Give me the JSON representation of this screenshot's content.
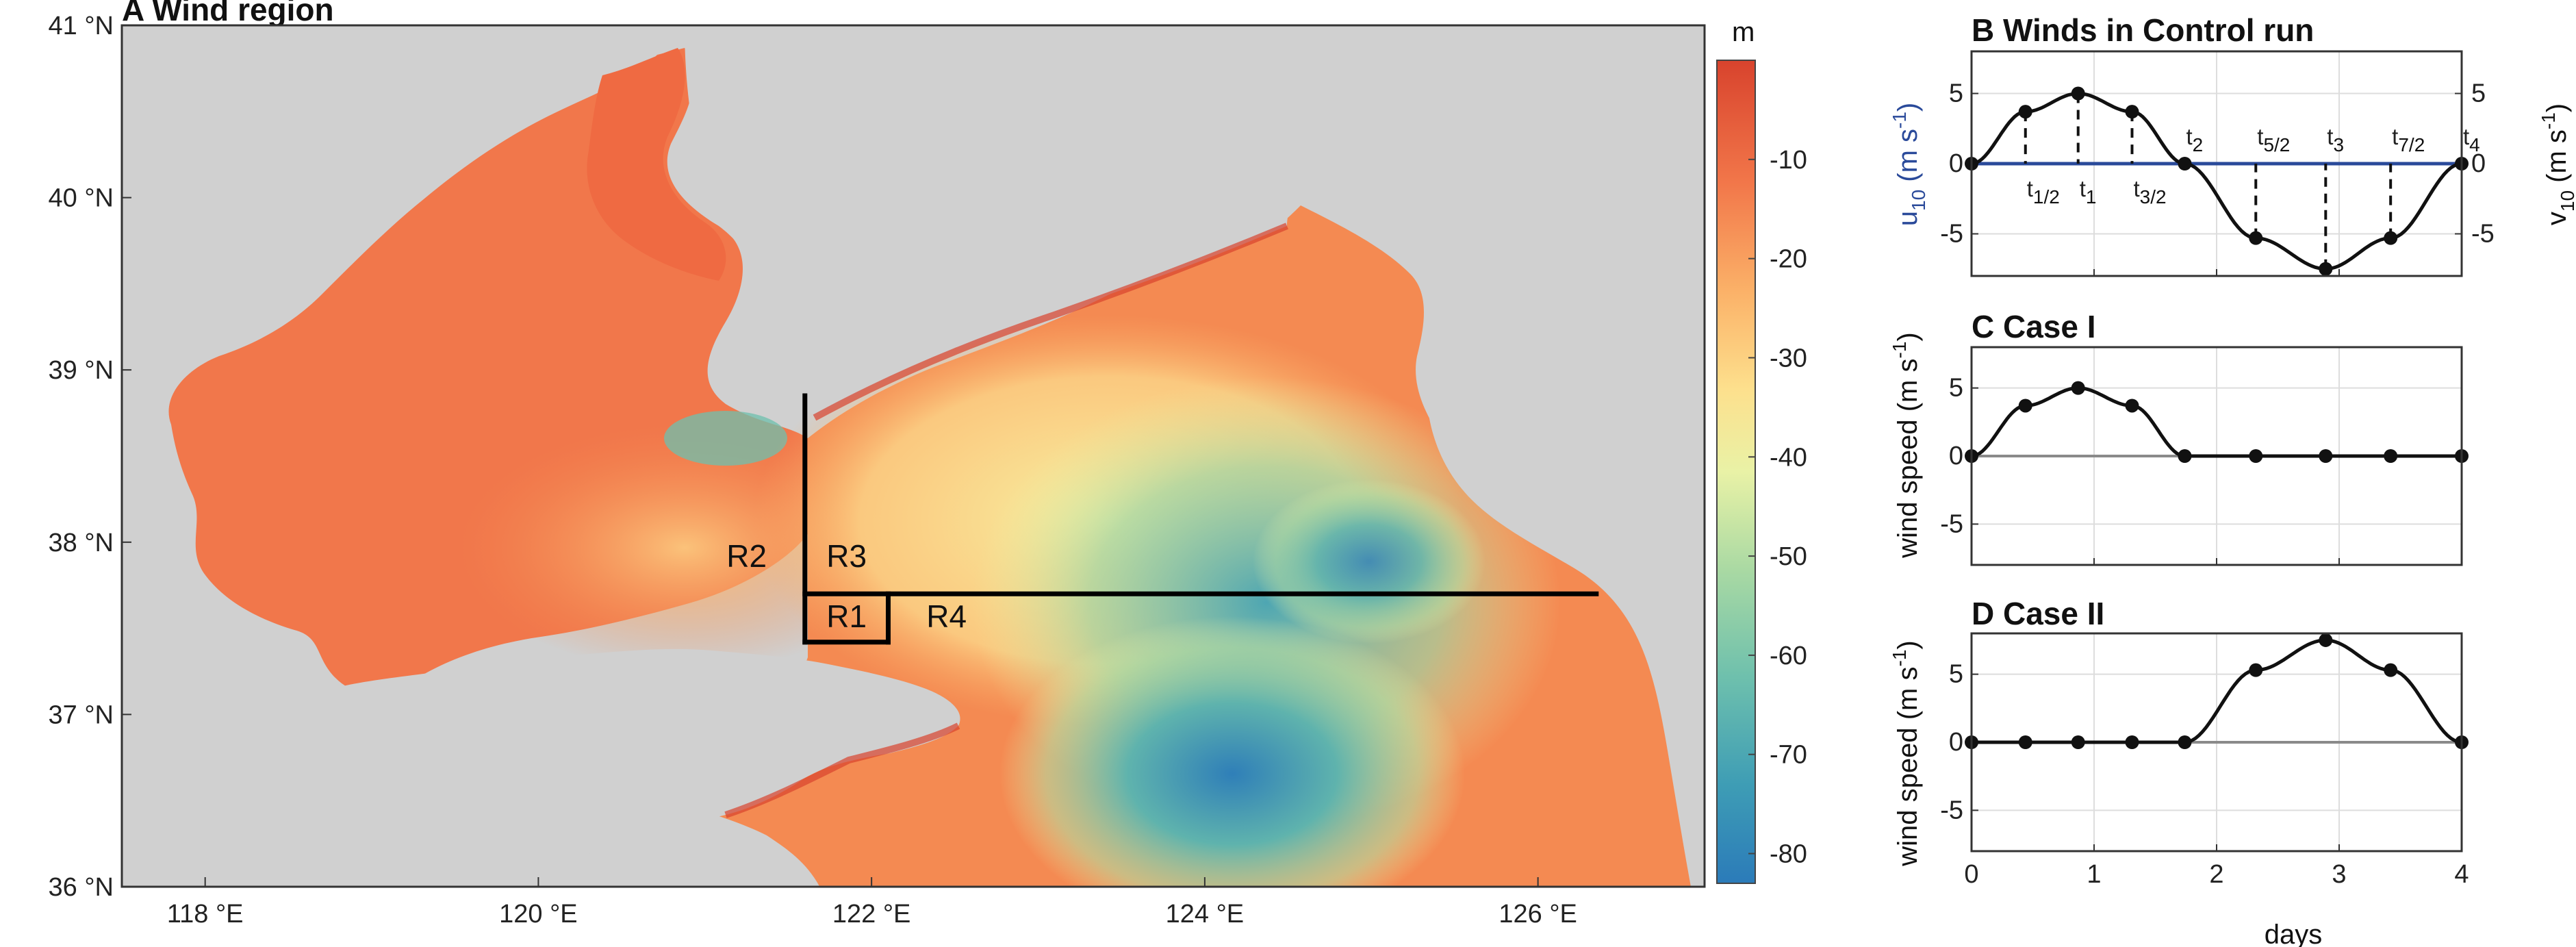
{
  "figure": {
    "colors": {
      "land": "#d0d0d0",
      "sea_shallow": "#e0492e",
      "sea_deep": "#2b7bb9",
      "u10_line": "#2a4a9a",
      "curve": "#111111",
      "zero_line": "#8a8a8a",
      "grid": "#dddddd"
    }
  },
  "panel_a": {
    "title": "A Wind region",
    "map": {
      "lon_range": [
        117.5,
        127.0
      ],
      "lat_range": [
        36.0,
        41.0
      ],
      "lon_ticks": [
        {
          "v": 118,
          "label": "118 °E"
        },
        {
          "v": 120,
          "label": "120 °E"
        },
        {
          "v": 122,
          "label": "122 °E"
        },
        {
          "v": 124,
          "label": "124 °E"
        },
        {
          "v": 126,
          "label": "126 °E"
        }
      ],
      "lat_ticks": [
        {
          "v": 36,
          "label": "36 °N"
        },
        {
          "v": 37,
          "label": "37 °N"
        },
        {
          "v": 38,
          "label": "38 °N"
        },
        {
          "v": 39,
          "label": "39 °N"
        },
        {
          "v": 40,
          "label": "40 °N"
        },
        {
          "v": 41,
          "label": "41 °N"
        }
      ],
      "region_lines": [
        {
          "from": [
            121.6,
            38.85
          ],
          "to": [
            121.6,
            37.42
          ]
        },
        {
          "from": [
            121.6,
            37.7
          ],
          "to": [
            126.35,
            37.7
          ]
        },
        {
          "from": [
            121.6,
            37.42
          ],
          "to": [
            122.1,
            37.42
          ]
        },
        {
          "from": [
            122.1,
            37.42
          ],
          "to": [
            122.1,
            37.7
          ]
        }
      ],
      "region_labels": [
        {
          "text": "R2",
          "lon": 121.25,
          "lat": 37.92
        },
        {
          "text": "R3",
          "lon": 121.85,
          "lat": 37.92
        },
        {
          "text": "R1",
          "lon": 121.85,
          "lat": 37.57
        },
        {
          "text": "R4",
          "lon": 122.45,
          "lat": 37.57
        }
      ]
    },
    "colorbar": {
      "unit": "m",
      "range": [
        -83,
        0
      ],
      "ticks": [
        {
          "v": -10,
          "label": "-10"
        },
        {
          "v": -20,
          "label": "-20"
        },
        {
          "v": -30,
          "label": "-30"
        },
        {
          "v": -40,
          "label": "-40"
        },
        {
          "v": -50,
          "label": "-50"
        },
        {
          "v": -60,
          "label": "-60"
        },
        {
          "v": -70,
          "label": "-70"
        },
        {
          "v": -80,
          "label": "-80"
        }
      ]
    }
  },
  "chart_data": [
    {
      "type": "line",
      "panel": "B",
      "title": "B Winds in Control run",
      "xlim": [
        0,
        4
      ],
      "ylim": [
        -8,
        8
      ],
      "ylabel_left": "u10 (m s-1)",
      "ylabel_right": "v10 (m s-1)",
      "yticks": [
        -5,
        0,
        5
      ],
      "series": [
        {
          "name": "u10",
          "x": [
            0,
            4
          ],
          "values": [
            0,
            0
          ]
        },
        {
          "name": "v10",
          "x": [
            0,
            0.44,
            0.87,
            1.31,
            1.74,
            2.32,
            2.89,
            3.42,
            4.0
          ],
          "values": [
            0,
            3.7,
            5.0,
            3.7,
            0,
            -5.3,
            -7.5,
            -5.3,
            0
          ]
        }
      ],
      "markers": [
        {
          "x": 0.44,
          "main": "t",
          "sub": "1/2",
          "pos": "below"
        },
        {
          "x": 0.87,
          "main": "t",
          "sub": "1",
          "pos": "below"
        },
        {
          "x": 1.31,
          "main": "t",
          "sub": "3/2",
          "pos": "below"
        },
        {
          "x": 1.74,
          "main": "t",
          "sub": "2",
          "pos": "above"
        },
        {
          "x": 2.32,
          "main": "t",
          "sub": "5/2",
          "pos": "above"
        },
        {
          "x": 2.89,
          "main": "t",
          "sub": "3",
          "pos": "above"
        },
        {
          "x": 3.42,
          "main": "t",
          "sub": "7/2",
          "pos": "above"
        },
        {
          "x": 4.0,
          "main": "t",
          "sub": "4",
          "pos": "above"
        }
      ]
    },
    {
      "type": "line",
      "panel": "C",
      "title": "C Case I",
      "xlim": [
        0,
        4
      ],
      "ylim": [
        -8,
        8
      ],
      "yticks": [
        -5,
        0,
        5
      ],
      "series": [
        {
          "x": [
            0,
            0.44,
            0.87,
            1.31,
            1.74,
            2.32,
            2.89,
            3.42,
            4.0
          ],
          "values": [
            0,
            3.7,
            5.0,
            3.7,
            0,
            0,
            0,
            0,
            0
          ]
        }
      ]
    },
    {
      "type": "line",
      "panel": "D",
      "title": "D Case II",
      "xlim": [
        0,
        4
      ],
      "ylim": [
        -8,
        8
      ],
      "yticks": [
        -5,
        0,
        5
      ],
      "xticks": [
        0,
        1,
        2,
        3,
        4
      ],
      "xlabel": "days",
      "series": [
        {
          "x": [
            0,
            0.44,
            0.87,
            1.31,
            1.74,
            2.32,
            2.89,
            3.42,
            4.0
          ],
          "values": [
            0,
            0,
            0,
            0,
            0,
            5.3,
            7.5,
            5.3,
            0
          ]
        }
      ]
    }
  ],
  "shared_ylabel": "wind speed (m s-1)",
  "shared_ylabel_upper": "wind speed (m s-1)",
  "ylabel_parts": {
    "u_main": "u",
    "u_sub": "10",
    "v_main": "v",
    "v_sub": "10",
    "unit_open": " (m s",
    "unit_exp": "-1",
    "unit_close": ")",
    "ws": "wind speed (m s",
    "ws_exp": "-1",
    "ws_close": ")"
  }
}
